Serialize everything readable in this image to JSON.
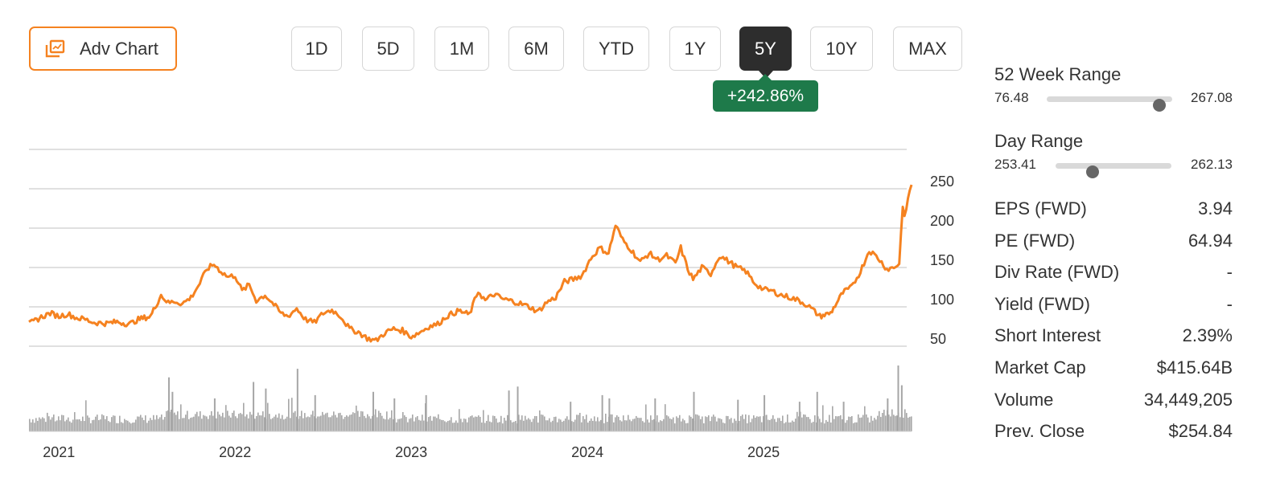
{
  "toolbar": {
    "adv_chart_label": "Adv Chart",
    "ranges": [
      "1D",
      "5D",
      "1M",
      "6M",
      "YTD",
      "1Y",
      "5Y",
      "10Y",
      "MAX"
    ],
    "active_range": "5Y",
    "change_badge": "+242.86%"
  },
  "colors": {
    "price_line": "#f58220",
    "volume_bars": "#a6a6a6",
    "active_tab": "#2d2d2d",
    "change_badge": "#1e7a4a"
  },
  "stats": {
    "week52": {
      "label": "52 Week Range",
      "low": "76.48",
      "high": "267.08",
      "position": 0.9
    },
    "day": {
      "label": "Day Range",
      "low": "253.41",
      "high": "262.13",
      "position": 0.32
    },
    "rows": [
      {
        "label": "EPS (FWD)",
        "value": "3.94"
      },
      {
        "label": "PE (FWD)",
        "value": "64.94"
      },
      {
        "label": "Div Rate (FWD)",
        "value": "-"
      },
      {
        "label": "Yield (FWD)",
        "value": "-"
      },
      {
        "label": "Short Interest",
        "value": "2.39%"
      },
      {
        "label": "Market Cap",
        "value": "$415.64B"
      },
      {
        "label": "Volume",
        "value": "34,449,205"
      },
      {
        "label": "Prev. Close",
        "value": "$254.84"
      }
    ]
  },
  "chart_data": {
    "type": "line",
    "x_range": [
      2020.83,
      2025.84
    ],
    "ylim": [
      50,
      300
    ],
    "y_ticks": [
      50,
      100,
      150,
      200,
      250
    ],
    "y_tick_labels": [
      "50",
      "100",
      "150",
      "200",
      "250"
    ],
    "x_ticks": [
      2021,
      2022,
      2023,
      2024,
      2025
    ],
    "x_tick_labels": [
      "2021",
      "2022",
      "2023",
      "2024",
      "2025"
    ],
    "grid": true,
    "price_series": {
      "x": [
        2020.83,
        2020.9,
        2020.95,
        2021.0,
        2021.05,
        2021.1,
        2021.15,
        2021.2,
        2021.27,
        2021.33,
        2021.4,
        2021.45,
        2021.52,
        2021.58,
        2021.62,
        2021.66,
        2021.7,
        2021.75,
        2021.8,
        2021.84,
        2021.88,
        2021.92,
        2021.96,
        2022.0,
        2022.04,
        2022.08,
        2022.12,
        2022.17,
        2022.22,
        2022.26,
        2022.3,
        2022.35,
        2022.4,
        2022.45,
        2022.5,
        2022.55,
        2022.6,
        2022.65,
        2022.7,
        2022.75,
        2022.8,
        2022.85,
        2022.9,
        2022.95,
        2023.0,
        2023.05,
        2023.1,
        2023.15,
        2023.2,
        2023.27,
        2023.33,
        2023.38,
        2023.42,
        2023.47,
        2023.52,
        2023.58,
        2023.62,
        2023.67,
        2023.72,
        2023.77,
        2023.82,
        2023.87,
        2023.92,
        2023.97,
        2024.02,
        2024.07,
        2024.12,
        2024.16,
        2024.2,
        2024.25,
        2024.3,
        2024.35,
        2024.4,
        2024.45,
        2024.5,
        2024.53,
        2024.57,
        2024.6,
        2024.65,
        2024.7,
        2024.75,
        2024.8,
        2024.85,
        2024.9,
        2024.95,
        2025.0,
        2025.05,
        2025.1,
        2025.15,
        2025.2,
        2025.25,
        2025.28,
        2025.32,
        2025.38,
        2025.45,
        2025.5,
        2025.55,
        2025.6,
        2025.65,
        2025.7,
        2025.74,
        2025.77,
        2025.79,
        2025.8,
        2025.82,
        2025.84
      ],
      "y": [
        78,
        87,
        92,
        88,
        91,
        86,
        84,
        80,
        79,
        81,
        78,
        84,
        88,
        115,
        105,
        107,
        104,
        112,
        130,
        148,
        154,
        145,
        138,
        140,
        120,
        128,
        108,
        115,
        103,
        92,
        88,
        98,
        84,
        80,
        92,
        96,
        88,
        72,
        68,
        60,
        57,
        67,
        72,
        70,
        62,
        68,
        75,
        78,
        88,
        95,
        90,
        120,
        108,
        116,
        110,
        107,
        104,
        100,
        94,
        106,
        112,
        132,
        135,
        140,
        162,
        175,
        168,
        204,
        185,
        172,
        157,
        168,
        160,
        165,
        155,
        175,
        148,
        135,
        150,
        142,
        165,
        158,
        150,
        145,
        130,
        122,
        120,
        115,
        112,
        108,
        102,
        96,
        88,
        92,
        118,
        125,
        145,
        172,
        162,
        148,
        150,
        155,
        230,
        212,
        238,
        255
      ]
    },
    "volume_series": {
      "spikes_x": [
        2021.62,
        2021.64,
        2021.88,
        2022.1,
        2022.17,
        2022.35,
        2022.45,
        2022.78,
        2022.9,
        2023.08,
        2023.55,
        2023.6,
        2023.9,
        2024.08,
        2024.12,
        2024.38,
        2024.6,
        2024.85,
        2025.0,
        2025.2,
        2025.3,
        2025.45,
        2025.7,
        2025.76,
        2025.78
      ],
      "spikes_h": [
        0.82,
        0.6,
        0.5,
        0.75,
        0.65,
        0.95,
        0.55,
        0.6,
        0.5,
        0.55,
        0.62,
        0.68,
        0.45,
        0.55,
        0.5,
        0.5,
        0.6,
        0.48,
        0.55,
        0.45,
        0.6,
        0.45,
        0.5,
        1.0,
        0.7
      ]
    }
  }
}
